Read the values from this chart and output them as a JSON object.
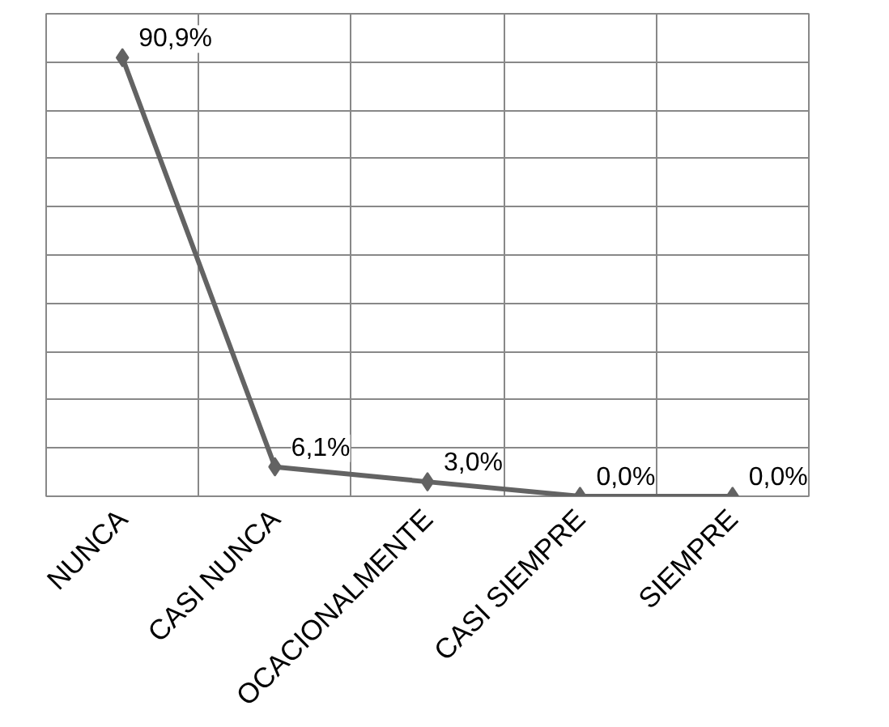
{
  "chart_data": {
    "type": "line",
    "categories": [
      "NUNCA",
      "CASI NUNCA",
      "OCACIONALMENTE",
      "CASI SIEMPRE",
      "SIEMPRE"
    ],
    "series": [
      {
        "color": "#636363",
        "values": [
          90.9,
          6.1,
          3.0,
          0.0,
          0.0
        ],
        "value_labels": [
          "90,9%",
          "6,1%",
          "3,0%",
          "0,0%",
          "0,0%"
        ]
      }
    ],
    "ylim": [
      0,
      100
    ],
    "yticks": [
      {
        "value": 0,
        "label": null
      },
      {
        "value": 10,
        "label": null
      },
      {
        "value": 20,
        "label": null
      },
      {
        "value": 30,
        "label": null
      },
      {
        "value": 40,
        "label": null
      },
      {
        "value": 50,
        "label": null
      },
      {
        "value": 60,
        "label": null
      },
      {
        "value": 70,
        "label": null
      },
      {
        "value": 80,
        "label": null
      },
      {
        "value": 90,
        "label": null
      },
      {
        "value": 100,
        "label": null
      }
    ],
    "tick_labels": "x",
    "grid": true,
    "marker": "diamond",
    "line_style": "solid"
  }
}
